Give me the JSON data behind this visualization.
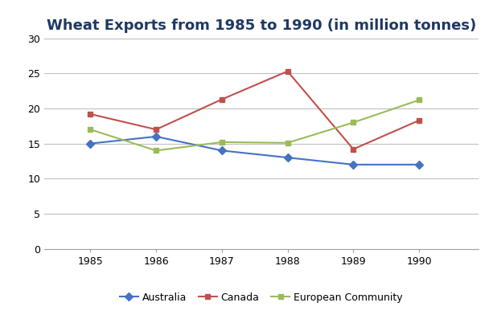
{
  "title": "Wheat Exports from 1985 to 1990 (in million tonnes)",
  "years": [
    1985,
    1986,
    1987,
    1988,
    1989,
    1990
  ],
  "australia": [
    15.0,
    16.0,
    14.0,
    13.0,
    12.0,
    12.0
  ],
  "canada": [
    19.2,
    17.0,
    21.3,
    25.3,
    14.2,
    18.3
  ],
  "european_community": [
    17.0,
    14.0,
    15.2,
    15.1,
    18.0,
    21.2
  ],
  "australia_color": "#4472C4",
  "canada_color": "#C0504D",
  "ec_color": "#9BBB59",
  "marker_australia": "D",
  "marker_canada": "s",
  "marker_ec": "s",
  "ylim": [
    0,
    30
  ],
  "yticks": [
    0,
    5,
    10,
    15,
    20,
    25,
    30
  ],
  "background_color": "#FFFFFF",
  "plot_bg_color": "#FFFFFF",
  "grid_color": "#C0C0C0",
  "title_fontsize": 13,
  "tick_fontsize": 9,
  "legend_labels": [
    "Australia",
    "Canada",
    "European Community"
  ]
}
